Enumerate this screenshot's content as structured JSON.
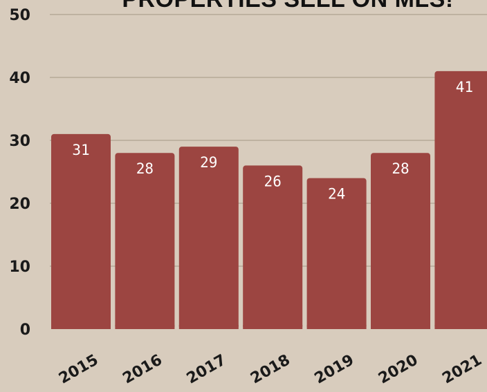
{
  "chart_data": {
    "type": "bar",
    "title": "PROPERTIES SELL ON MLS!",
    "categories": [
      "2015",
      "2016",
      "2017",
      "2018",
      "2019",
      "2020",
      "2021"
    ],
    "values": [
      31,
      28,
      29,
      26,
      24,
      28,
      41
    ],
    "data_labels": [
      "31",
      "28",
      "29",
      "26",
      "24",
      "28",
      "41"
    ],
    "yticks": [
      "0",
      "10",
      "20",
      "30",
      "40",
      "50"
    ],
    "ylim": [
      0,
      50
    ],
    "xlabel": "",
    "ylabel": "",
    "grid": true,
    "legend": "none",
    "colors": {
      "background": "#d8ccbd",
      "bar": "#9c4541",
      "grid": "#b5a998",
      "axis_text": "#1a1a1a",
      "label_text": "#ffffff"
    }
  }
}
